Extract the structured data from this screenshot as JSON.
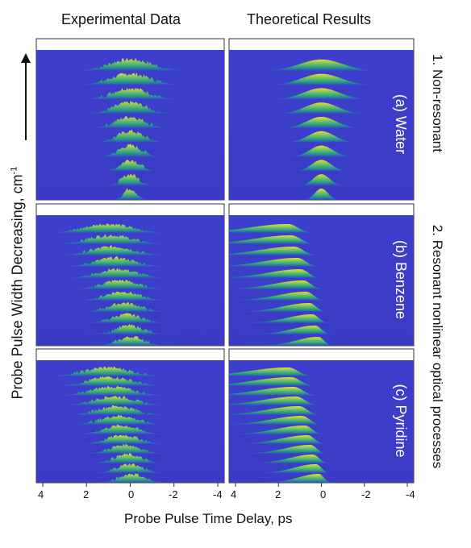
{
  "headers": {
    "left": "Experimental Data",
    "right": "Theoretical Results"
  },
  "y_axis_label": "Probe Pulse Width Decreasing, cm",
  "y_axis_superscript": "-1",
  "x_axis_label": "Probe Pulse Time Delay, ps",
  "x_ticks": [
    "4",
    "2",
    "0",
    "-2",
    "-4"
  ],
  "side_labels": {
    "group1": "1. Non-resonant",
    "group2": "2. Resonant nonlinear optical processes"
  },
  "panels": [
    {
      "id": "a",
      "label": "(a) Water",
      "type": "non-resonant",
      "traces": 10
    },
    {
      "id": "b",
      "label": "(b) Benzene",
      "type": "resonant",
      "traces": 11
    },
    {
      "id": "c",
      "label": "(c) Pyridine",
      "type": "resonant",
      "traces": 12
    }
  ],
  "colors": {
    "background": "#3b3fcf",
    "peak": "#fde725",
    "mid": "#35b779",
    "low": "#31688e"
  }
}
